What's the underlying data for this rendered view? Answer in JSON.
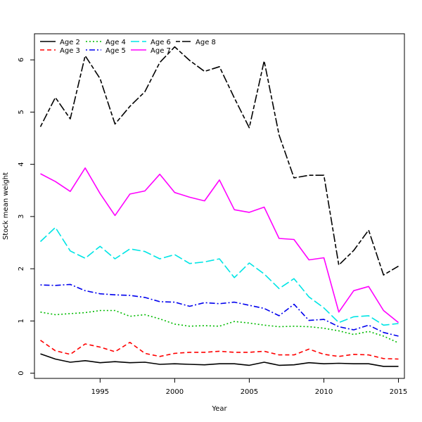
{
  "chart_data": {
    "type": "line",
    "xlabel": "Year",
    "ylabel": "Stock mean weight",
    "xlim": [
      1990.6,
      2015.4
    ],
    "ylim": [
      -0.1,
      6.5
    ],
    "x_ticks": [
      1995,
      2000,
      2005,
      2010,
      2015
    ],
    "y_ticks": [
      0,
      1,
      2,
      3,
      4,
      5,
      6
    ],
    "legend_position": "top-left",
    "grid": false,
    "x": [
      1991,
      1992,
      1993,
      1994,
      1995,
      1996,
      1997,
      1998,
      1999,
      2000,
      2001,
      2002,
      2003,
      2004,
      2005,
      2006,
      2007,
      2008,
      2009,
      2010,
      2011,
      2012,
      2013,
      2014,
      2015
    ],
    "series": [
      {
        "name": "Age 2",
        "color": "#000000",
        "dash": "solid",
        "values": [
          0.37,
          0.27,
          0.21,
          0.24,
          0.2,
          0.22,
          0.2,
          0.21,
          0.17,
          0.18,
          0.17,
          0.16,
          0.18,
          0.18,
          0.15,
          0.21,
          0.15,
          0.16,
          0.2,
          0.18,
          0.19,
          0.18,
          0.18,
          0.13,
          0.13
        ]
      },
      {
        "name": "Age 3",
        "color": "#ff0000",
        "dash": "dashed",
        "values": [
          0.63,
          0.43,
          0.36,
          0.56,
          0.5,
          0.41,
          0.59,
          0.38,
          0.32,
          0.38,
          0.4,
          0.4,
          0.42,
          0.4,
          0.4,
          0.42,
          0.35,
          0.35,
          0.46,
          0.36,
          0.32,
          0.36,
          0.35,
          0.28,
          0.27
        ]
      },
      {
        "name": "Age 4",
        "color": "#00bb00",
        "dash": "dotted",
        "values": [
          1.17,
          1.12,
          1.14,
          1.16,
          1.2,
          1.2,
          1.09,
          1.12,
          1.04,
          0.94,
          0.9,
          0.91,
          0.9,
          0.99,
          0.96,
          0.92,
          0.89,
          0.9,
          0.89,
          0.86,
          0.81,
          0.74,
          0.8,
          0.71,
          0.58
        ]
      },
      {
        "name": "Age 5",
        "color": "#0000ee",
        "dash": "dotdash",
        "values": [
          1.69,
          1.68,
          1.7,
          1.58,
          1.52,
          1.5,
          1.49,
          1.45,
          1.37,
          1.36,
          1.28,
          1.35,
          1.33,
          1.36,
          1.3,
          1.24,
          1.1,
          1.32,
          1.01,
          1.03,
          0.89,
          0.83,
          0.92,
          0.78,
          0.71
        ]
      },
      {
        "name": "Age 6",
        "color": "#00e5e5",
        "dash": "longdash",
        "values": [
          2.52,
          2.79,
          2.34,
          2.2,
          2.43,
          2.19,
          2.38,
          2.33,
          2.19,
          2.27,
          2.1,
          2.13,
          2.19,
          1.83,
          2.11,
          1.9,
          1.62,
          1.81,
          1.46,
          1.25,
          0.97,
          1.08,
          1.1,
          0.92,
          0.95
        ]
      },
      {
        "name": "Age 7",
        "color": "#ff00ff",
        "dash": "solid",
        "values": [
          3.82,
          3.67,
          3.48,
          3.93,
          3.44,
          3.02,
          3.43,
          3.49,
          3.81,
          3.46,
          3.37,
          3.3,
          3.7,
          3.13,
          3.08,
          3.18,
          2.58,
          2.56,
          2.17,
          2.21,
          1.17,
          1.58,
          1.66,
          1.2,
          0.97
        ]
      },
      {
        "name": "Age 8",
        "color": "#000000",
        "dash": "twodash",
        "values": [
          4.72,
          5.28,
          4.87,
          6.08,
          5.64,
          4.77,
          5.11,
          5.39,
          5.95,
          6.25,
          5.99,
          5.78,
          5.87,
          5.27,
          4.7,
          5.98,
          4.56,
          3.74,
          3.79,
          3.79,
          2.07,
          2.35,
          2.74,
          1.88,
          2.05
        ]
      }
    ]
  }
}
